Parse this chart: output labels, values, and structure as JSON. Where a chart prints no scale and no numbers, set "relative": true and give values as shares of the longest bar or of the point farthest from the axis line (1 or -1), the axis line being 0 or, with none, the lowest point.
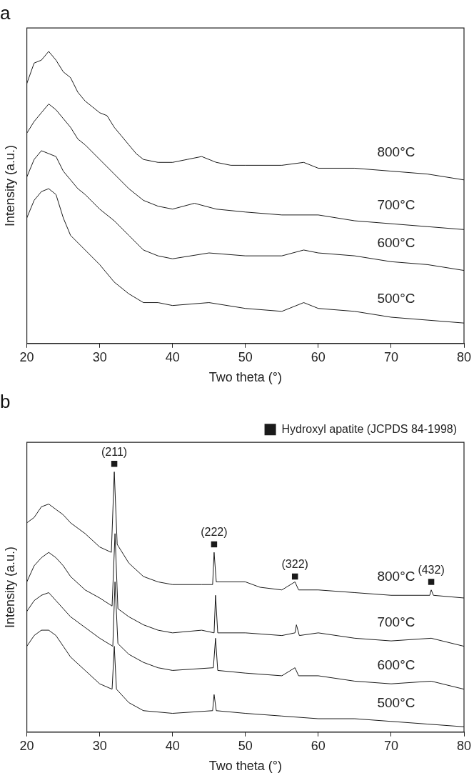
{
  "chart_data": [
    {
      "type": "line",
      "title": "a",
      "xlabel": "Two theta (°)",
      "ylabel": "Intensity (a.u.)",
      "relative": true,
      "xlim": [
        20,
        80
      ],
      "xticks": [
        20,
        30,
        40,
        50,
        60,
        70,
        80
      ],
      "grid": false,
      "legend": false,
      "tick_labels": "x",
      "line_style": "solid",
      "series": [
        {
          "name": "800°C",
          "color": "#1a1a1a",
          "x": [
            20,
            21,
            22,
            23,
            24,
            25,
            26,
            27,
            28,
            29,
            30,
            31,
            32,
            33,
            34,
            35,
            36,
            38,
            40,
            42,
            44,
            46,
            48,
            50,
            55,
            58,
            60,
            65,
            70,
            75,
            80
          ],
          "values": [
            0.89,
            0.96,
            0.97,
            1.0,
            0.97,
            0.93,
            0.91,
            0.86,
            0.83,
            0.81,
            0.79,
            0.78,
            0.74,
            0.71,
            0.68,
            0.65,
            0.63,
            0.62,
            0.62,
            0.63,
            0.64,
            0.62,
            0.61,
            0.61,
            0.61,
            0.62,
            0.6,
            0.6,
            0.59,
            0.58,
            0.56
          ]
        },
        {
          "name": "700°C",
          "color": "#1a1a1a",
          "x": [
            20,
            21,
            22,
            23,
            24,
            25,
            26,
            27,
            28,
            30,
            32,
            34,
            36,
            38,
            40,
            43,
            46,
            50,
            55,
            60,
            65,
            70,
            75,
            80
          ],
          "values": [
            0.72,
            0.76,
            0.79,
            0.82,
            0.8,
            0.77,
            0.74,
            0.7,
            0.68,
            0.63,
            0.58,
            0.53,
            0.49,
            0.47,
            0.46,
            0.48,
            0.46,
            0.45,
            0.44,
            0.44,
            0.42,
            0.41,
            0.4,
            0.39
          ]
        },
        {
          "name": "600°C",
          "color": "#1a1a1a",
          "x": [
            20,
            21,
            22,
            23,
            24,
            25,
            26,
            27,
            28,
            30,
            32,
            34,
            36,
            38,
            40,
            45,
            50,
            55,
            58,
            60,
            65,
            70,
            75,
            80
          ],
          "values": [
            0.57,
            0.63,
            0.66,
            0.65,
            0.64,
            0.59,
            0.56,
            0.53,
            0.51,
            0.46,
            0.42,
            0.37,
            0.32,
            0.3,
            0.29,
            0.31,
            0.3,
            0.3,
            0.32,
            0.31,
            0.3,
            0.28,
            0.27,
            0.25
          ]
        },
        {
          "name": "500°C",
          "color": "#1a1a1a",
          "x": [
            20,
            21,
            22,
            23,
            24,
            25,
            26,
            28,
            30,
            32,
            34,
            36,
            38,
            40,
            45,
            50,
            55,
            58,
            60,
            65,
            70,
            75,
            80
          ],
          "values": [
            0.43,
            0.49,
            0.52,
            0.53,
            0.51,
            0.43,
            0.37,
            0.32,
            0.27,
            0.21,
            0.17,
            0.14,
            0.14,
            0.13,
            0.14,
            0.12,
            0.11,
            0.14,
            0.12,
            0.11,
            0.09,
            0.08,
            0.07
          ]
        }
      ]
    },
    {
      "type": "line",
      "title": "b",
      "xlabel": "Two theta (°)",
      "ylabel": "Intensity (a.u.)",
      "relative": true,
      "xlim": [
        20,
        80
      ],
      "xticks": [
        20,
        30,
        40,
        50,
        60,
        70,
        80
      ],
      "grid": false,
      "legend": "top right",
      "tick_labels": "x",
      "line_style": "solid",
      "annotations": [
        {
          "text": "(211)",
          "x": 32,
          "y": 1.0
        },
        {
          "text": "(222)",
          "x": 45.7,
          "y": 0.7
        },
        {
          "text": "(322)",
          "x": 56.8,
          "y": 0.58
        },
        {
          "text": "(432)",
          "x": 75.5,
          "y": 0.56
        }
      ],
      "series": [
        {
          "name": "800°C",
          "color": "#1a1a1a",
          "x": [
            20,
            21,
            22,
            23,
            24,
            25,
            26,
            28,
            30,
            31.6,
            32,
            32.4,
            34,
            36,
            38,
            40,
            44,
            45.5,
            45.7,
            46,
            50,
            52,
            55,
            56.8,
            57.3,
            60,
            65,
            70,
            75.3,
            75.5,
            75.8,
            80
          ],
          "values": [
            0.78,
            0.8,
            0.84,
            0.85,
            0.83,
            0.81,
            0.78,
            0.74,
            0.69,
            0.67,
            0.97,
            0.7,
            0.63,
            0.58,
            0.56,
            0.55,
            0.55,
            0.55,
            0.67,
            0.56,
            0.56,
            0.54,
            0.53,
            0.56,
            0.53,
            0.53,
            0.52,
            0.51,
            0.51,
            0.53,
            0.51,
            0.5
          ]
        },
        {
          "name": "700°C",
          "color": "#1a1a1a",
          "x": [
            20,
            21,
            22,
            23,
            24,
            25,
            26,
            28,
            30,
            31.7,
            32.1,
            32.5,
            34,
            36,
            38,
            40,
            44,
            45.7,
            45.9,
            46.2,
            50,
            55,
            56.8,
            57,
            57.4,
            60,
            65,
            70,
            75.5,
            80
          ],
          "values": [
            0.56,
            0.62,
            0.65,
            0.67,
            0.65,
            0.62,
            0.58,
            0.53,
            0.5,
            0.47,
            0.74,
            0.46,
            0.43,
            0.4,
            0.38,
            0.37,
            0.38,
            0.37,
            0.51,
            0.37,
            0.37,
            0.36,
            0.37,
            0.4,
            0.36,
            0.37,
            0.35,
            0.34,
            0.35,
            0.32
          ]
        },
        {
          "name": "600°C",
          "color": "#1a1a1a",
          "x": [
            20,
            21,
            22,
            23,
            24,
            25,
            26,
            28,
            30,
            31.8,
            32.1,
            32.5,
            34,
            36,
            38,
            40,
            45.6,
            45.9,
            46.2,
            50,
            55,
            56.8,
            57.3,
            60,
            65,
            70,
            75.5,
            80
          ],
          "values": [
            0.45,
            0.49,
            0.51,
            0.52,
            0.49,
            0.46,
            0.43,
            0.39,
            0.35,
            0.32,
            0.56,
            0.33,
            0.29,
            0.26,
            0.24,
            0.23,
            0.24,
            0.35,
            0.23,
            0.22,
            0.21,
            0.24,
            0.21,
            0.21,
            0.19,
            0.18,
            0.19,
            0.16
          ]
        },
        {
          "name": "500°C",
          "color": "#1a1a1a",
          "x": [
            20,
            21,
            22,
            23,
            24,
            25,
            26,
            28,
            30,
            31.7,
            32,
            32.3,
            34,
            36,
            40,
            45.5,
            45.7,
            46,
            50,
            55,
            60,
            65,
            70,
            75,
            80
          ],
          "values": [
            0.32,
            0.36,
            0.38,
            0.38,
            0.36,
            0.32,
            0.28,
            0.23,
            0.18,
            0.16,
            0.32,
            0.16,
            0.11,
            0.08,
            0.07,
            0.08,
            0.14,
            0.08,
            0.07,
            0.06,
            0.05,
            0.05,
            0.04,
            0.03,
            0.02
          ]
        },
        {
          "name": "Hydroxyl apatite (JCPDS 84-1998)",
          "type": "scatter",
          "marker": "square",
          "color": "#1a1a1a",
          "x": [
            32,
            45.7,
            56.8,
            75.5
          ],
          "values": [
            1.0,
            0.7,
            0.58,
            0.56
          ]
        }
      ]
    }
  ]
}
